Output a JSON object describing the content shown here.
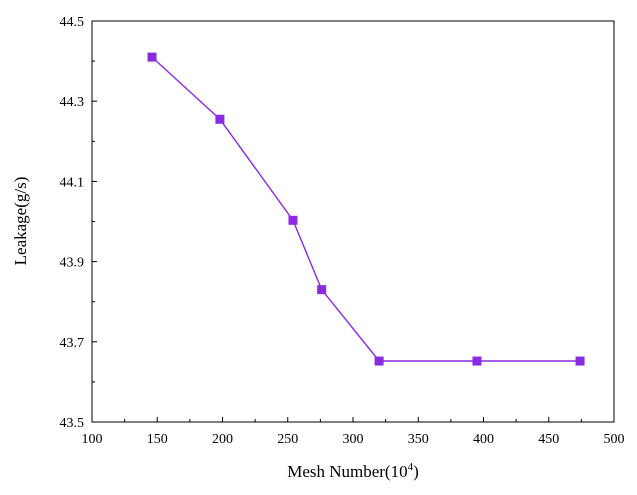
{
  "chart_data": {
    "type": "line",
    "xlabel": "Mesh Number(10",
    "xlabel_sup": "4",
    "xlabel_end": ")",
    "ylabel": "Leakage(g/s)",
    "xlim": [
      100,
      500
    ],
    "ylim": [
      43.5,
      44.5
    ],
    "x_ticks": [
      "100",
      "150",
      "200",
      "250",
      "300",
      "350",
      "400",
      "450",
      "500"
    ],
    "y_ticks": [
      "43.5",
      "43.7",
      "43.9",
      "44.1",
      "44.3",
      "44.5"
    ],
    "series": [
      {
        "color": "#8a2be2",
        "marker": "square",
        "x": [
          146,
          198,
          254,
          276,
          320,
          395,
          474
        ],
        "y": [
          44.41,
          44.255,
          44.003,
          43.83,
          43.652,
          43.652,
          43.652
        ]
      }
    ],
    "grid": false,
    "legend": "none"
  }
}
